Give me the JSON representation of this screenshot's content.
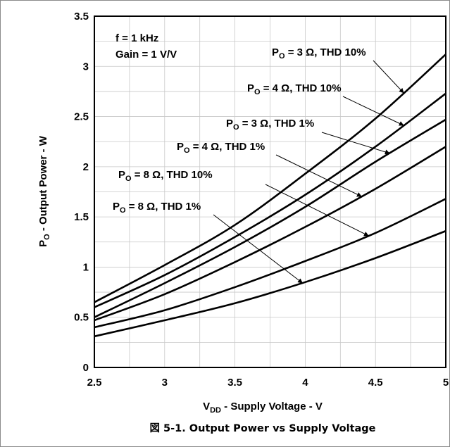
{
  "chart_data": {
    "type": "line",
    "caption": "図 5-1. Output Power vs Supply Voltage",
    "xlabel": {
      "main": "V",
      "sub": "DD",
      "rest": " - Supply Voltage - V"
    },
    "ylabel": {
      "main": "P",
      "sub": "O",
      "rest": " - Output Power - W"
    },
    "xlim": [
      2.5,
      5
    ],
    "ylim": [
      0,
      3.5
    ],
    "x_ticks": [
      "2.5",
      "3",
      "3.5",
      "4",
      "4.5",
      "5"
    ],
    "y_ticks": [
      "0",
      "0.5",
      "1",
      "1.5",
      "2",
      "2.5",
      "3",
      "3.5"
    ],
    "grid": true,
    "annotations": [
      "f = 1 kHz",
      "Gain = 1 V/V"
    ],
    "series": [
      {
        "name": "P_O = 3 Ω, THD 10%",
        "label": {
          "main": "P",
          "sub": "O",
          "rest": " = 3 Ω, THD 10%"
        },
        "arrow_at": 4.7,
        "x": [
          2.5,
          3,
          3.5,
          4,
          4.5,
          5
        ],
        "y": [
          0.65,
          1.02,
          1.42,
          1.93,
          2.48,
          3.12
        ]
      },
      {
        "name": "P_O = 4 Ω, THD 10%",
        "label": {
          "main": "P",
          "sub": "O",
          "rest": " = 4 Ω, THD 10%"
        },
        "arrow_at": 4.7,
        "x": [
          2.5,
          3,
          3.5,
          4,
          4.5,
          5
        ],
        "y": [
          0.6,
          0.92,
          1.3,
          1.72,
          2.2,
          2.73
        ]
      },
      {
        "name": "P_O = 3 Ω, THD 1%",
        "label": {
          "main": "P",
          "sub": "O",
          "rest": " = 3 Ω, THD 1%"
        },
        "arrow_at": 4.6,
        "x": [
          2.5,
          3,
          3.5,
          4,
          4.5,
          5
        ],
        "y": [
          0.5,
          0.84,
          1.2,
          1.6,
          2.05,
          2.47
        ]
      },
      {
        "name": "P_O = 4 Ω, THD 1%",
        "label": {
          "main": "P",
          "sub": "O",
          "rest": " = 4 Ω, THD 1%"
        },
        "arrow_at": 4.4,
        "x": [
          2.5,
          3,
          3.5,
          4,
          4.5,
          5
        ],
        "y": [
          0.47,
          0.73,
          1.05,
          1.4,
          1.78,
          2.2
        ]
      },
      {
        "name": "P_O = 8 Ω, THD 10%",
        "label": {
          "main": "P",
          "sub": "O",
          "rest": " = 8 Ω, THD 10%"
        },
        "arrow_at": 4.45,
        "x": [
          2.5,
          3,
          3.5,
          4,
          4.5,
          5
        ],
        "y": [
          0.4,
          0.57,
          0.8,
          1.06,
          1.34,
          1.68
        ]
      },
      {
        "name": "P_O = 8 Ω, THD 1%",
        "label": {
          "main": "P",
          "sub": "O",
          "rest": " = 8 Ω, THD 1%"
        },
        "arrow_at": 3.98,
        "x": [
          2.5,
          3,
          3.5,
          4,
          4.5,
          5
        ],
        "y": [
          0.31,
          0.47,
          0.64,
          0.85,
          1.09,
          1.36
        ]
      }
    ]
  }
}
